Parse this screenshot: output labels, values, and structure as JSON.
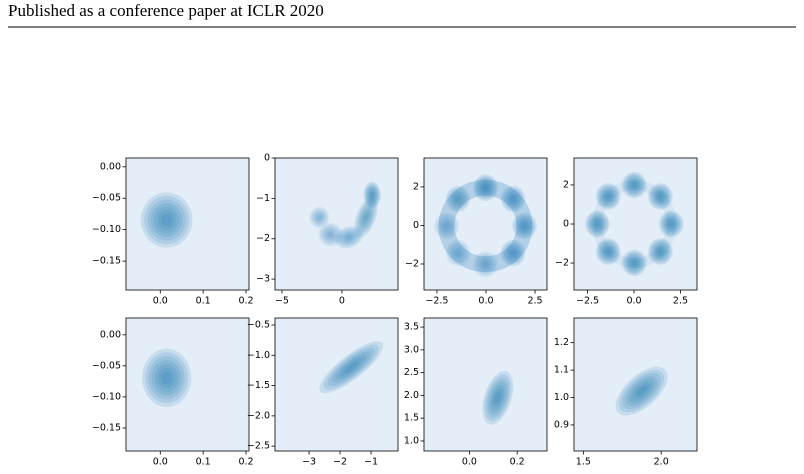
{
  "header": {
    "title": "Published as a conference paper at ICLR 2020"
  },
  "chart_data": [
    {
      "type": "kde",
      "xlim": [
        -0.08,
        0.207
      ],
      "ylim": [
        -0.196,
        0.014
      ],
      "xticks": [
        {
          "value": 0.0,
          "label": "0.0"
        },
        0.1,
        0.2
      ],
      "yticks": [
        {
          "value": 0.0,
          "label": "0.00"
        },
        {
          "value": -0.05,
          "label": "−0.05"
        },
        {
          "value": -0.1,
          "label": "−0.10"
        },
        {
          "value": -0.15,
          "label": "−0.15"
        }
      ]
    },
    {
      "type": "kde",
      "xlim": [
        -5.58,
        4.67
      ],
      "ylim": [
        -3.27,
        0.0
      ],
      "xticks": [
        {
          "value": -5,
          "label": "−5"
        },
        0
      ],
      "yticks": [
        0,
        {
          "value": -1,
          "label": "−1"
        },
        {
          "value": -2,
          "label": "−2"
        },
        {
          "value": -3,
          "label": "−3"
        }
      ]
    },
    {
      "type": "kde",
      "xlim": [
        -3.16,
        3.11
      ],
      "ylim": [
        -3.35,
        3.5
      ],
      "xticks": [
        {
          "value": -2.5,
          "label": "−2.5"
        },
        {
          "value": 0.0,
          "label": "0.0"
        },
        2.5
      ],
      "yticks": [
        2,
        0,
        {
          "value": -2,
          "label": "−2"
        }
      ]
    },
    {
      "type": "kde",
      "xlim": [
        -3.23,
        3.39
      ],
      "ylim": [
        -3.38,
        3.38
      ],
      "xticks": [
        {
          "value": -2.5,
          "label": "−2.5"
        },
        {
          "value": 0.0,
          "label": "0.0"
        },
        2.5
      ],
      "yticks": [
        2,
        0,
        {
          "value": -2,
          "label": "−2"
        }
      ]
    },
    {
      "type": "kde",
      "xlim": [
        -0.08,
        0.207
      ],
      "ylim": [
        -0.187,
        0.027
      ],
      "xticks": [
        {
          "value": 0.0,
          "label": "0.0"
        },
        0.1,
        0.2
      ],
      "yticks": [
        {
          "value": 0.0,
          "label": "0.00"
        },
        {
          "value": -0.05,
          "label": "−0.05"
        },
        {
          "value": -0.1,
          "label": "−0.10"
        },
        {
          "value": -0.15,
          "label": "−0.15"
        }
      ]
    },
    {
      "type": "kde",
      "xlim": [
        -4.1,
        -0.13
      ],
      "ylim": [
        -2.58,
        -0.384
      ],
      "xticks": [
        {
          "value": -3,
          "label": "−3"
        },
        {
          "value": -2,
          "label": "−2"
        },
        {
          "value": -1,
          "label": "−1"
        }
      ],
      "yticks": [
        {
          "value": -0.5,
          "label": "−0.5"
        },
        {
          "value": -1.0,
          "label": "−1.0"
        },
        {
          "value": -1.5,
          "label": "−1.5"
        },
        {
          "value": -2.0,
          "label": "−2.0"
        },
        {
          "value": -2.5,
          "label": "−2.5"
        }
      ]
    },
    {
      "type": "kde",
      "xlim": [
        -0.19,
        0.325
      ],
      "ylim": [
        0.78,
        3.7
      ],
      "xticks": [
        {
          "value": 0.0,
          "label": "0.0"
        },
        0.2
      ],
      "yticks": [
        3.5,
        {
          "value": 3.0,
          "label": "3.0"
        },
        2.5,
        {
          "value": 2.0,
          "label": "2.0"
        },
        1.5,
        {
          "value": 1.0,
          "label": "1.0"
        }
      ]
    },
    {
      "type": "kde",
      "xlim": [
        1.44,
        2.23
      ],
      "ylim": [
        0.805,
        1.29
      ],
      "xticks": [
        1.5,
        {
          "value": 2.0,
          "label": "2.0"
        }
      ],
      "yticks": [
        1.2,
        1.1,
        {
          "value": 1.0,
          "label": "1.0"
        },
        0.9
      ]
    }
  ]
}
